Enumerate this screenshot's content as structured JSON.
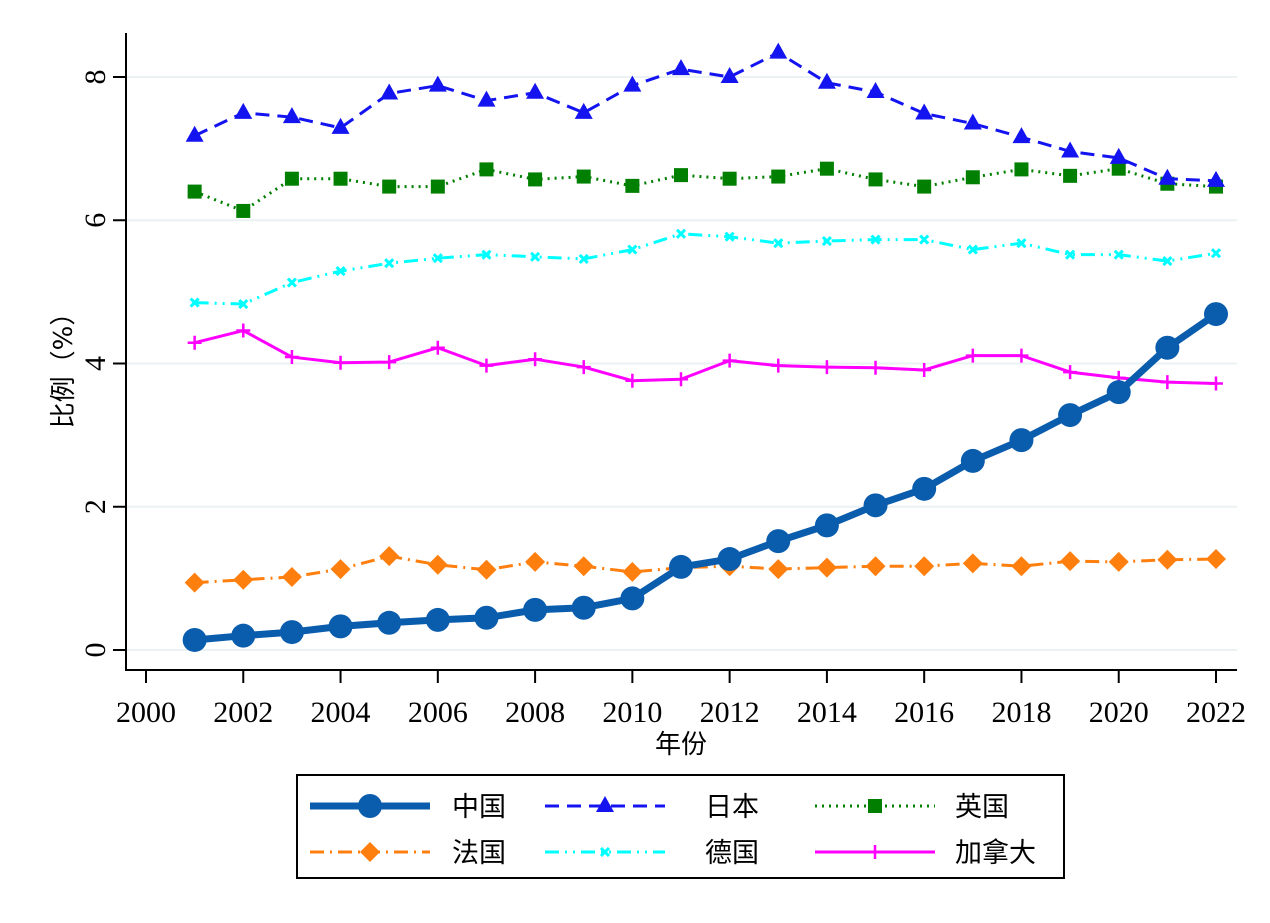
{
  "chart_data": {
    "type": "line",
    "title": "",
    "xlabel": "年份",
    "ylabel": "比例（%）",
    "xlim": [
      1999.6,
      2022.4
    ],
    "ylim": [
      -0.28,
      8.6
    ],
    "xticks": [
      2000,
      2002,
      2004,
      2006,
      2008,
      2010,
      2012,
      2014,
      2016,
      2018,
      2020,
      2022
    ],
    "yticks": [
      0,
      2,
      4,
      6,
      8
    ],
    "grid": "horizontal",
    "legend_position": "bottom",
    "legend_columns": 3,
    "x": [
      2001,
      2002,
      2003,
      2004,
      2005,
      2006,
      2007,
      2008,
      2009,
      2010,
      2011,
      2012,
      2013,
      2014,
      2015,
      2016,
      2017,
      2018,
      2019,
      2020,
      2021,
      2022
    ],
    "series": [
      {
        "name": "中国",
        "color": "#0a5cad",
        "line_style": "solid",
        "marker": "circle",
        "values": [
          0.14,
          0.2,
          0.25,
          0.33,
          0.38,
          0.42,
          0.45,
          0.56,
          0.59,
          0.72,
          1.16,
          1.27,
          1.52,
          1.74,
          2.02,
          2.25,
          2.64,
          2.93,
          3.28,
          3.6,
          4.22,
          4.69
        ]
      },
      {
        "name": "日本",
        "color": "#1414f0",
        "line_style": "dashed",
        "marker": "triangle",
        "values": [
          7.18,
          7.5,
          7.44,
          7.29,
          7.77,
          7.88,
          7.67,
          7.78,
          7.5,
          7.88,
          8.11,
          8.0,
          8.34,
          7.92,
          7.79,
          7.49,
          7.35,
          7.16,
          6.96,
          6.87,
          6.58,
          6.55
        ]
      },
      {
        "name": "英国",
        "color": "#007f00",
        "line_style": "dotted",
        "marker": "square",
        "values": [
          6.4,
          6.13,
          6.58,
          6.58,
          6.47,
          6.47,
          6.71,
          6.57,
          6.61,
          6.48,
          6.63,
          6.58,
          6.61,
          6.72,
          6.57,
          6.47,
          6.6,
          6.71,
          6.62,
          6.72,
          6.51,
          6.47
        ]
      },
      {
        "name": "法国",
        "color": "#ff7f0e",
        "line_style": "dash-dot",
        "marker": "diamond",
        "values": [
          0.94,
          0.98,
          1.02,
          1.13,
          1.31,
          1.19,
          1.12,
          1.23,
          1.17,
          1.09,
          1.15,
          1.17,
          1.13,
          1.15,
          1.17,
          1.17,
          1.21,
          1.17,
          1.24,
          1.23,
          1.26,
          1.27
        ]
      },
      {
        "name": "德国",
        "color": "#00ffff",
        "line_style": "dash-dot-dot",
        "marker": "x",
        "values": [
          4.85,
          4.83,
          5.13,
          5.29,
          5.4,
          5.47,
          5.52,
          5.49,
          5.46,
          5.59,
          5.81,
          5.77,
          5.68,
          5.71,
          5.73,
          5.73,
          5.59,
          5.68,
          5.52,
          5.52,
          5.43,
          5.54
        ]
      },
      {
        "name": "加拿大",
        "color": "#ff00ff",
        "line_style": "solid",
        "marker": "plus",
        "values": [
          4.29,
          4.46,
          4.09,
          4.01,
          4.02,
          4.22,
          3.97,
          4.06,
          3.95,
          3.76,
          3.78,
          4.04,
          3.97,
          3.95,
          3.94,
          3.91,
          4.11,
          4.11,
          3.88,
          3.8,
          3.74,
          3.72
        ]
      }
    ]
  }
}
